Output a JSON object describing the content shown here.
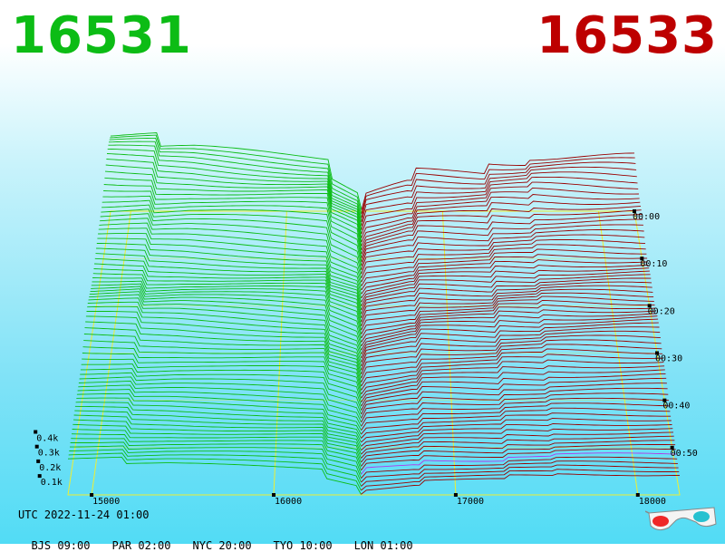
{
  "header": {
    "bid": "16531",
    "ask": "16533",
    "bid_color": "#0cbc15",
    "ask_color": "#bd0000"
  },
  "chart_data": {
    "type": "area",
    "view": "3d-depth",
    "x_ticks": [
      "15000",
      "16000",
      "17000",
      "18000"
    ],
    "y_ticks": [
      "0.1k",
      "0.2k",
      "0.3k",
      "0.4k"
    ],
    "z_ticks": [
      "00:00",
      "00:10",
      "00:20",
      "00:30",
      "00:40",
      "00:50"
    ],
    "xlim": [
      14870,
      18230
    ],
    "ylim": [
      0,
      0.45
    ],
    "bid_side_color": "#0cbc15",
    "ask_side_color": "#990000",
    "latest_ask_color": "#b13ae8",
    "gridlines": true,
    "grid_color": "#eeee33"
  },
  "footer": {
    "utc": "UTC 2022-11-24 01:00",
    "zones": [
      "BJS 09:00",
      "PAR 02:00",
      "NYC 20:00",
      "TYO 10:00",
      "LON 01:00"
    ]
  },
  "icons": {
    "glasses": "3d-glasses-icon"
  }
}
